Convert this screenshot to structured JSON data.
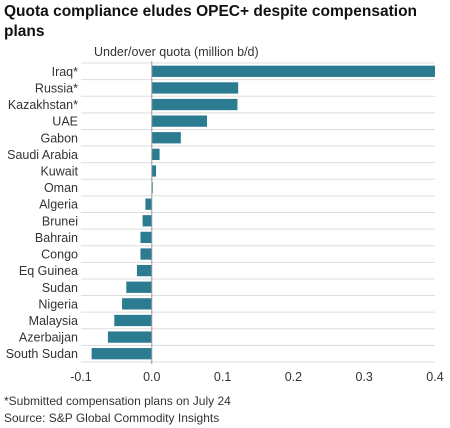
{
  "chart_data": {
    "type": "bar",
    "orientation": "horizontal",
    "title": "Quota compliance eludes OPEC+ despite compensation plans",
    "ylabel": "Under/over quota (million b/d)",
    "categories": [
      "Iraq*",
      "Russia*",
      "Kazakhstan*",
      "UAE",
      "Gabon",
      "Saudi Arabia",
      "Kuwait",
      "Oman",
      "Algeria",
      "Brunei",
      "Bahrain",
      "Congo",
      "Eq Guinea",
      "Sudan",
      "Nigeria",
      "Malaysia",
      "Azerbaijan",
      "South Sudan"
    ],
    "values": [
      0.4,
      0.122,
      0.121,
      0.078,
      0.041,
      0.011,
      0.006,
      0.001,
      -0.009,
      -0.013,
      -0.016,
      -0.016,
      -0.021,
      -0.036,
      -0.042,
      -0.053,
      -0.062,
      -0.085
    ],
    "xlim": [
      -0.1,
      0.4
    ],
    "xticks": [
      "-0.1",
      "0.0",
      "0.1",
      "0.2",
      "0.3",
      "0.4"
    ],
    "xtick_values": [
      -0.1,
      0.0,
      0.1,
      0.2,
      0.3,
      0.4
    ],
    "grid": true,
    "legend": "none",
    "bar_color": "#2b7c91",
    "footnote": "*Submitted compensation plans on July 24",
    "source": "Source: S&P Global Commodity Insights"
  }
}
